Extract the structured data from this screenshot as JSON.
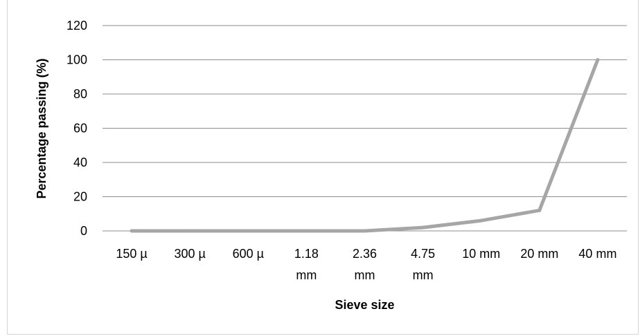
{
  "chart_data": {
    "type": "line",
    "title": "",
    "xlabel": "Sieve size",
    "ylabel": "Percentage  passing (%)",
    "categories": [
      [
        "150 µ"
      ],
      [
        "300 µ"
      ],
      [
        "600 µ"
      ],
      [
        "1.18",
        "mm"
      ],
      [
        "2.36",
        "mm"
      ],
      [
        "4.75",
        "mm"
      ],
      [
        "10 mm"
      ],
      [
        "20 mm"
      ],
      [
        "40 mm"
      ]
    ],
    "series": [
      {
        "values": [
          0,
          0,
          0,
          0,
          0,
          2,
          6,
          12,
          100
        ],
        "color": "#a6a6a6"
      }
    ],
    "ylim": [
      0,
      120
    ],
    "yticks": [
      0,
      20,
      40,
      60,
      80,
      100,
      120
    ],
    "grid": true,
    "gridline_color": "#8c8c8c",
    "legend": "none"
  }
}
